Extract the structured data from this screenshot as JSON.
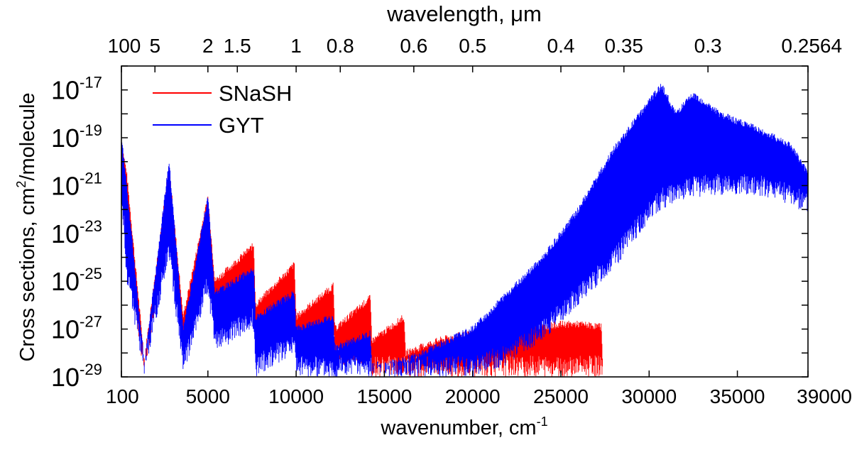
{
  "chart_data": {
    "type": "line",
    "title": "",
    "xlabel": "wavenumber, cm",
    "xlabel_sup": "-1",
    "x2label": "wavelength, μm",
    "ylabel": "Cross sections, cm",
    "ylabel_sup": "2",
    "ylabel_tail": "/molecule",
    "xlim": [
      100,
      39000
    ],
    "ylim_exp": [
      -29,
      -16
    ],
    "y_scale": "log",
    "grid": false,
    "legend_position": "top-left",
    "x_ticks": [
      {
        "value": 100,
        "label": "100"
      },
      {
        "value": 5000,
        "label": "5000"
      },
      {
        "value": 10000,
        "label": "10000"
      },
      {
        "value": 15000,
        "label": "15000"
      },
      {
        "value": 20000,
        "label": "20000"
      },
      {
        "value": 25000,
        "label": "25000"
      },
      {
        "value": 30000,
        "label": "30000"
      },
      {
        "value": 35000,
        "label": "35000"
      },
      {
        "value": 39000,
        "label": "39000"
      }
    ],
    "y_ticks": [
      {
        "exp": -29,
        "base": "10",
        "sup": "-29"
      },
      {
        "exp": -27,
        "base": "10",
        "sup": "-27"
      },
      {
        "exp": -25,
        "base": "10",
        "sup": "-25"
      },
      {
        "exp": -23,
        "base": "10",
        "sup": "-23"
      },
      {
        "exp": -21,
        "base": "10",
        "sup": "-21"
      },
      {
        "exp": -19,
        "base": "10",
        "sup": "-19"
      },
      {
        "exp": -17,
        "base": "10",
        "sup": "-17"
      }
    ],
    "top_ticks": [
      {
        "wavelength_um": 100,
        "label": "100"
      },
      {
        "wavelength_um": 5,
        "label": "5"
      },
      {
        "wavelength_um": 2,
        "label": "2"
      },
      {
        "wavelength_um": 1.5,
        "label": "1.5"
      },
      {
        "wavelength_um": 1,
        "label": "1"
      },
      {
        "wavelength_um": 0.8,
        "label": "0.8"
      },
      {
        "wavelength_um": 0.6,
        "label": "0.6"
      },
      {
        "wavelength_um": 0.5,
        "label": "0.5"
      },
      {
        "wavelength_um": 0.4,
        "label": "0.4"
      },
      {
        "wavelength_um": 0.35,
        "label": "0.35"
      },
      {
        "wavelength_um": 0.3,
        "label": "0.3"
      },
      {
        "wavelength_um": 0.2564,
        "label": "0.2564"
      }
    ],
    "series": [
      {
        "name": "SNaSH",
        "color": "#ff0000",
        "x": [
          100,
          400,
          1400,
          2800,
          3600,
          5000,
          5400,
          7600,
          7700,
          9900,
          10000,
          12100,
          12200,
          14200,
          14300,
          16100,
          16200,
          18000,
          19000,
          20000,
          21000,
          22000,
          23000,
          24000,
          25000,
          26000,
          27300,
          27400
        ],
        "upper_log10": [
          -19.2,
          -20.5,
          -28.3,
          -20.2,
          -26.5,
          -21.5,
          -25.0,
          -23.5,
          -26.0,
          -24.3,
          -26.5,
          -25.2,
          -27.0,
          -25.7,
          -27.5,
          -26.5,
          -28.0,
          -27.5,
          -27.3,
          -27.2,
          -27.0,
          -27.0,
          -26.9,
          -26.9,
          -26.8,
          -26.8,
          -26.9,
          -29.0
        ],
        "lower_log10": [
          -21.0,
          -24.0,
          -29.0,
          -22.5,
          -28.0,
          -23.5,
          -26.5,
          -25.5,
          -27.5,
          -26.5,
          -28.0,
          -27.5,
          -28.5,
          -28.5,
          -29.0,
          -29.0,
          -29.0,
          -29.0,
          -29.0,
          -29.0,
          -29.0,
          -29.0,
          -29.0,
          -29.0,
          -29.0,
          -29.0,
          -29.0,
          -29.0
        ]
      },
      {
        "name": "GYT",
        "color": "#0000ff",
        "x": [
          100,
          400,
          1400,
          2800,
          3600,
          5000,
          5400,
          7600,
          7700,
          9900,
          10000,
          12100,
          12200,
          14200,
          14300,
          16100,
          16200,
          18000,
          20000,
          22000,
          24000,
          26000,
          28000,
          29000,
          30000,
          30700,
          31500,
          32500,
          34000,
          36000,
          38000,
          39000
        ],
        "upper_log10": [
          -19.0,
          -21.0,
          -28.5,
          -20.0,
          -27.0,
          -21.5,
          -25.5,
          -24.5,
          -26.5,
          -25.5,
          -27.0,
          -26.5,
          -27.8,
          -27.2,
          -28.5,
          -28.3,
          -28.3,
          -27.7,
          -27.0,
          -25.5,
          -24.0,
          -22.0,
          -19.5,
          -18.5,
          -17.5,
          -16.8,
          -18.0,
          -17.2,
          -18.0,
          -18.6,
          -19.3,
          -20.5
        ],
        "lower_log10": [
          -21.5,
          -25.0,
          -29.0,
          -24.0,
          -29.0,
          -25.5,
          -28.0,
          -27.0,
          -29.0,
          -28.0,
          -29.0,
          -29.0,
          -29.0,
          -29.0,
          -29.0,
          -29.0,
          -29.0,
          -29.0,
          -29.0,
          -28.5,
          -27.5,
          -26.0,
          -24.5,
          -23.5,
          -22.5,
          -22.0,
          -21.8,
          -21.5,
          -21.4,
          -21.4,
          -21.8,
          -22.2
        ]
      }
    ]
  }
}
